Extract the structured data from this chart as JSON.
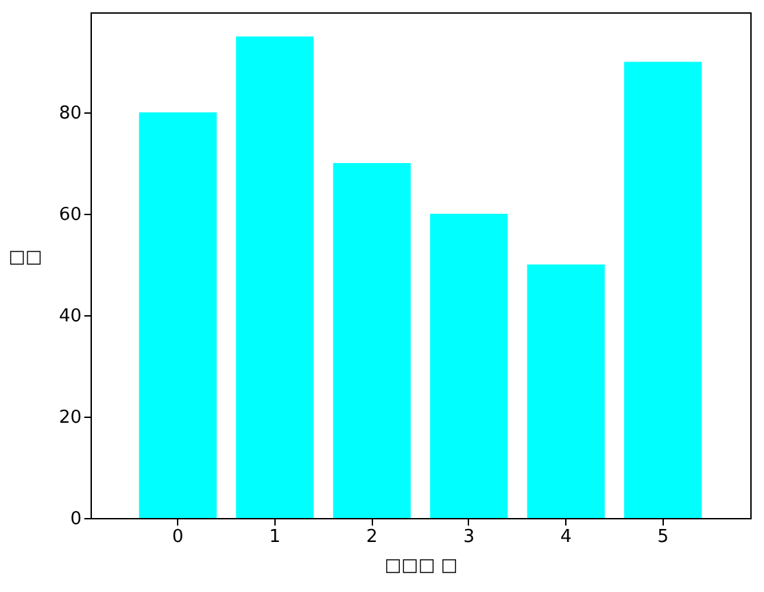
{
  "chart_data": {
    "type": "bar",
    "xlabel": "□□□ □",
    "ylabel": "□□",
    "categories": [
      "0",
      "1",
      "2",
      "3",
      "4",
      "5"
    ],
    "values": [
      80,
      95,
      70,
      60,
      50,
      90
    ],
    "color": "#00ffff",
    "ylim": [
      0,
      99.75
    ],
    "yticks": [
      0,
      20,
      40,
      60,
      80
    ],
    "grid": false
  }
}
